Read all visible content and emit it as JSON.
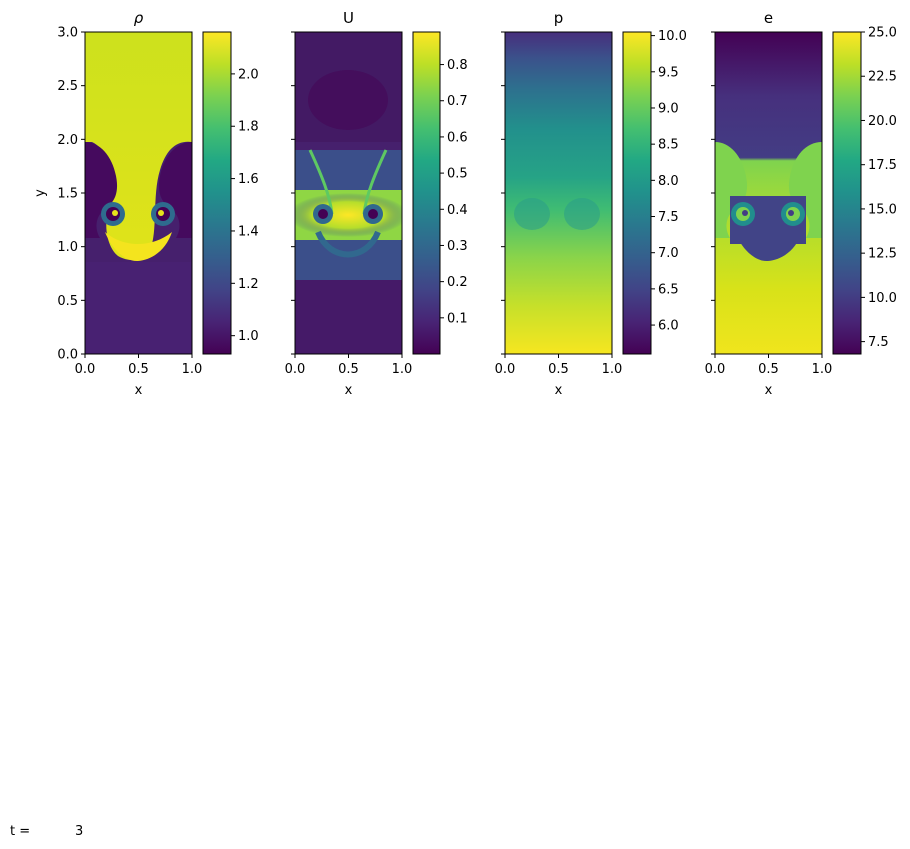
{
  "figure": {
    "time_label": "t =",
    "time_value": "3"
  },
  "chart_data": [
    {
      "type": "heatmap",
      "title": "ρ",
      "xlabel": "x",
      "ylabel": "y",
      "xlim": [
        0,
        1
      ],
      "ylim": [
        0,
        3
      ],
      "xticks": [
        "0.0",
        "0.5",
        "1.0"
      ],
      "yticks": [
        "0.0",
        "0.5",
        "1.0",
        "1.5",
        "2.0",
        "2.5",
        "3.0"
      ],
      "colormap": "viridis",
      "colorbar_range": [
        0.93,
        2.16
      ],
      "colorbar_ticks": [
        "1.0",
        "1.2",
        "1.4",
        "1.6",
        "1.8",
        "2.0"
      ],
      "field": "density",
      "values": {
        "heavy_fluid_top": 2.0,
        "light_fluid_bottom": 1.0,
        "interface_top_y": 2.0,
        "bubble_bottom_y": 0.85,
        "vortex_y": 1.3
      }
    },
    {
      "type": "heatmap",
      "title": "U",
      "xlabel": "x",
      "ylabel": "",
      "xlim": [
        0,
        1
      ],
      "ylim": [
        0,
        3
      ],
      "xticks": [
        "0.0",
        "0.5",
        "1.0"
      ],
      "yticks": [],
      "colormap": "viridis",
      "colorbar_range": [
        0.0,
        0.89
      ],
      "colorbar_ticks": [
        "0.1",
        "0.2",
        "0.3",
        "0.4",
        "0.5",
        "0.6",
        "0.7",
        "0.8"
      ],
      "field": "velocity magnitude",
      "values": {
        "peak_band_y": 1.3,
        "peak_value": 0.85,
        "background_value": 0.05
      }
    },
    {
      "type": "heatmap",
      "title": "p",
      "xlabel": "x",
      "ylabel": "",
      "xlim": [
        0,
        1
      ],
      "ylim": [
        0,
        3
      ],
      "xticks": [
        "0.0",
        "0.5",
        "1.0"
      ],
      "yticks": [],
      "colormap": "viridis",
      "colorbar_range": [
        5.6,
        10.05
      ],
      "colorbar_ticks": [
        "6.0",
        "6.5",
        "7.0",
        "7.5",
        "8.0",
        "8.5",
        "9.0",
        "9.5",
        "10.0"
      ],
      "field": "pressure",
      "values": {
        "at_y0": 10.0,
        "at_y3": 5.6
      }
    },
    {
      "type": "heatmap",
      "title": "e",
      "xlabel": "x",
      "ylabel": "",
      "xlim": [
        0,
        1
      ],
      "ylim": [
        0,
        3
      ],
      "xticks": [
        "0.0",
        "0.5",
        "1.0"
      ],
      "yticks": [],
      "colormap": "viridis",
      "colorbar_range": [
        6.8,
        25.0
      ],
      "colorbar_ticks": [
        "7.5",
        "10.0",
        "12.5",
        "15.0",
        "17.5",
        "20.0",
        "22.5",
        "25.0"
      ],
      "field": "energy",
      "values": {
        "bottom": 25.0,
        "top": 7.0,
        "interface_top_y": 2.0,
        "bubble_bottom_y": 0.85
      }
    }
  ]
}
